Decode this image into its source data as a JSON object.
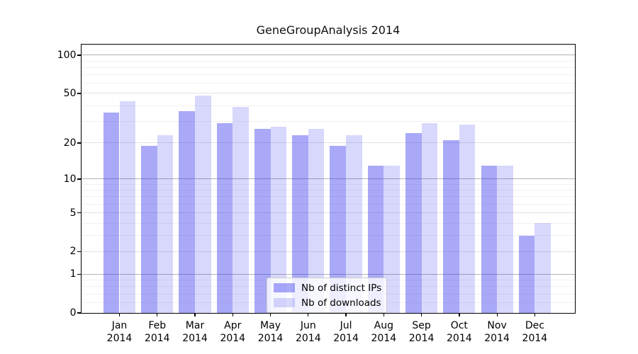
{
  "title": "GeneGroupAnalysis 2014",
  "colors": {
    "spine": "#000000",
    "grid_major": "#b3b3b3",
    "grid_mid": "#e2e2e2",
    "grid_minor": "#f1f1f1",
    "series_dark": "rgba(50,50,238,0.42)",
    "series_light": "rgba(50,50,238,0.19)",
    "legend_border": "#cccccc",
    "legend_bg": "rgba(255,255,255,0.8)"
  },
  "chart_data": {
    "type": "bar",
    "title": "GeneGroupAnalysis 2014",
    "categories": [
      "Jan 2014",
      "Feb 2014",
      "Mar 2014",
      "Apr 2014",
      "May 2014",
      "Jun 2014",
      "Jul 2014",
      "Aug 2014",
      "Sep 2014",
      "Oct 2014",
      "Nov 2014",
      "Dec 2014"
    ],
    "series": [
      {
        "name": "Nb of distinct IPs",
        "color": "rgba(50,50,238,0.42)",
        "values": [
          35,
          19,
          36,
          29,
          26,
          23,
          19,
          13,
          24,
          21,
          13,
          3
        ]
      },
      {
        "name": "Nb of downloads",
        "color": "rgba(50,50,238,0.19)",
        "values": [
          43,
          23,
          48,
          39,
          27,
          26,
          23,
          13,
          29,
          28,
          13,
          4
        ]
      }
    ],
    "xlabel": "",
    "ylabel": "",
    "yscale": "symlog (position proportional to log(1+value))",
    "ylim": [
      0,
      121
    ],
    "yticks": [
      100,
      50,
      20,
      10,
      5,
      2,
      1,
      0
    ],
    "major_gridlines": [
      1,
      10,
      100
    ],
    "minor_gridlines": [
      0.2,
      0.4,
      0.6,
      0.8,
      3,
      4,
      6,
      7,
      8,
      9,
      30,
      40,
      60,
      70,
      80,
      90
    ],
    "grid": true,
    "legend_position": "lower center"
  }
}
